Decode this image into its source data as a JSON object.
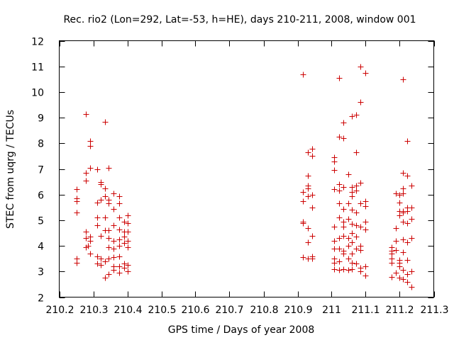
{
  "chart_data": {
    "type": "scatter",
    "title": "Rec. rio2 (Lon=292, Lat=-53, h=HE), days 210-211, 2008, window 001",
    "xlabel": "GPS time / Days of year 2008",
    "ylabel": "STEC from uqrg / TECUs",
    "xlim": [
      210.2,
      211.3
    ],
    "ylim": [
      2,
      12
    ],
    "grid": false,
    "legend": "none",
    "marker": "+",
    "color": "#cc0000",
    "x_ticks": [
      210.2,
      210.3,
      210.4,
      210.5,
      210.6,
      210.7,
      210.8,
      210.9,
      211,
      211.1,
      211.2,
      211.3
    ],
    "x_tick_labels": [
      "210.2",
      "210.3",
      "210.4",
      "210.5",
      "210.6",
      "210.7",
      "210.8",
      "210.9",
      "211",
      "211.1",
      "211.2",
      "211.3"
    ],
    "y_ticks": [
      2,
      3,
      4,
      5,
      6,
      7,
      8,
      9,
      10,
      11,
      12
    ],
    "y_tick_labels": [
      "2",
      "3",
      "4",
      "5",
      "6",
      "7",
      "8",
      "9",
      "10",
      "11",
      "12"
    ],
    "series": [
      {
        "name": "STEC",
        "points": [
          [
            210.252,
            6.2
          ],
          [
            210.252,
            5.85
          ],
          [
            210.252,
            5.75
          ],
          [
            210.252,
            5.3
          ],
          [
            210.252,
            3.5
          ],
          [
            210.252,
            3.35
          ],
          [
            210.278,
            9.15
          ],
          [
            210.278,
            6.85
          ],
          [
            210.278,
            6.55
          ],
          [
            210.278,
            4.55
          ],
          [
            210.278,
            4.3
          ],
          [
            210.278,
            3.95
          ],
          [
            210.285,
            4.0
          ],
          [
            210.29,
            8.1
          ],
          [
            210.29,
            7.9
          ],
          [
            210.29,
            7.05
          ],
          [
            210.29,
            4.35
          ],
          [
            210.29,
            4.2
          ],
          [
            210.29,
            3.7
          ],
          [
            210.312,
            7.0
          ],
          [
            210.312,
            5.7
          ],
          [
            210.312,
            5.1
          ],
          [
            210.312,
            4.8
          ],
          [
            210.312,
            3.6
          ],
          [
            210.312,
            3.3
          ],
          [
            210.322,
            6.5
          ],
          [
            210.322,
            6.4
          ],
          [
            210.322,
            5.8
          ],
          [
            210.322,
            4.4
          ],
          [
            210.322,
            3.5
          ],
          [
            210.322,
            3.25
          ],
          [
            210.335,
            8.85
          ],
          [
            210.335,
            6.25
          ],
          [
            210.335,
            5.95
          ],
          [
            210.335,
            5.1
          ],
          [
            210.335,
            4.6
          ],
          [
            210.335,
            3.4
          ],
          [
            210.335,
            2.75
          ],
          [
            210.345,
            7.05
          ],
          [
            210.345,
            5.8
          ],
          [
            210.345,
            5.65
          ],
          [
            210.345,
            4.3
          ],
          [
            210.345,
            4.6
          ],
          [
            210.345,
            3.95
          ],
          [
            210.345,
            3.5
          ],
          [
            210.345,
            2.9
          ],
          [
            210.36,
            6.05
          ],
          [
            210.36,
            5.45
          ],
          [
            210.36,
            4.8
          ],
          [
            210.36,
            4.2
          ],
          [
            210.36,
            3.9
          ],
          [
            210.36,
            3.55
          ],
          [
            210.36,
            3.2
          ],
          [
            210.36,
            3.05
          ],
          [
            210.375,
            5.95
          ],
          [
            210.375,
            5.65
          ],
          [
            210.375,
            5.1
          ],
          [
            210.375,
            4.65
          ],
          [
            210.375,
            4.25
          ],
          [
            210.375,
            4.0
          ],
          [
            210.375,
            3.6
          ],
          [
            210.375,
            3.2
          ],
          [
            210.375,
            2.95
          ],
          [
            210.39,
            4.95
          ],
          [
            210.39,
            4.55
          ],
          [
            210.39,
            4.35
          ],
          [
            210.39,
            4.1
          ],
          [
            210.39,
            3.3
          ],
          [
            210.39,
            3.15
          ],
          [
            210.4,
            5.2
          ],
          [
            210.4,
            4.9
          ],
          [
            210.4,
            4.55
          ],
          [
            210.4,
            4.2
          ],
          [
            210.4,
            3.95
          ],
          [
            210.4,
            3.25
          ],
          [
            210.4,
            3.0
          ],
          [
            210.915,
            10.7
          ],
          [
            210.915,
            6.1
          ],
          [
            210.915,
            5.75
          ],
          [
            210.915,
            4.95
          ],
          [
            210.915,
            4.9
          ],
          [
            210.915,
            3.55
          ],
          [
            210.93,
            7.65
          ],
          [
            210.93,
            6.75
          ],
          [
            210.93,
            6.35
          ],
          [
            210.93,
            6.25
          ],
          [
            210.93,
            5.95
          ],
          [
            210.93,
            4.7
          ],
          [
            210.93,
            4.15
          ],
          [
            210.93,
            3.5
          ],
          [
            210.942,
            7.8
          ],
          [
            210.942,
            7.5
          ],
          [
            210.942,
            6.0
          ],
          [
            210.942,
            5.5
          ],
          [
            210.942,
            4.4
          ],
          [
            210.942,
            3.6
          ],
          [
            210.942,
            3.5
          ],
          [
            211.008,
            7.45
          ],
          [
            211.008,
            7.3
          ],
          [
            211.008,
            6.95
          ],
          [
            211.008,
            6.2
          ],
          [
            211.008,
            4.75
          ],
          [
            211.008,
            4.2
          ],
          [
            211.008,
            3.9
          ],
          [
            211.008,
            3.5
          ],
          [
            211.008,
            3.35
          ],
          [
            211.008,
            3.1
          ],
          [
            211.022,
            10.55
          ],
          [
            211.022,
            8.25
          ],
          [
            211.022,
            6.4
          ],
          [
            211.022,
            6.15
          ],
          [
            211.022,
            5.65
          ],
          [
            211.022,
            5.1
          ],
          [
            211.022,
            4.3
          ],
          [
            211.022,
            3.9
          ],
          [
            211.022,
            3.4
          ],
          [
            211.022,
            3.05
          ],
          [
            211.035,
            8.8
          ],
          [
            211.035,
            8.2
          ],
          [
            211.035,
            6.3
          ],
          [
            211.035,
            5.45
          ],
          [
            211.035,
            4.95
          ],
          [
            211.035,
            4.75
          ],
          [
            211.035,
            4.4
          ],
          [
            211.035,
            3.8
          ],
          [
            211.035,
            3.7
          ],
          [
            211.035,
            3.1
          ],
          [
            211.048,
            6.8
          ],
          [
            211.048,
            5.65
          ],
          [
            211.048,
            5.05
          ],
          [
            211.048,
            4.3
          ],
          [
            211.048,
            4.0
          ],
          [
            211.048,
            3.5
          ],
          [
            211.048,
            3.05
          ],
          [
            211.06,
            9.05
          ],
          [
            211.06,
            6.3
          ],
          [
            211.06,
            6.1
          ],
          [
            211.06,
            5.95
          ],
          [
            211.06,
            5.4
          ],
          [
            211.06,
            4.85
          ],
          [
            211.06,
            4.5
          ],
          [
            211.06,
            4.15
          ],
          [
            211.06,
            3.7
          ],
          [
            211.06,
            3.35
          ],
          [
            211.06,
            3.1
          ],
          [
            211.072,
            9.1
          ],
          [
            211.072,
            7.65
          ],
          [
            211.072,
            6.35
          ],
          [
            211.072,
            6.15
          ],
          [
            211.072,
            5.3
          ],
          [
            211.072,
            4.8
          ],
          [
            211.072,
            4.35
          ],
          [
            211.072,
            3.9
          ],
          [
            211.072,
            3.3
          ],
          [
            211.085,
            11.0
          ],
          [
            211.085,
            9.6
          ],
          [
            211.085,
            6.45
          ],
          [
            211.085,
            5.65
          ],
          [
            211.085,
            4.75
          ],
          [
            211.085,
            4.0
          ],
          [
            211.085,
            3.85
          ],
          [
            211.085,
            3.15
          ],
          [
            211.085,
            3.0
          ],
          [
            211.1,
            10.75
          ],
          [
            211.1,
            5.75
          ],
          [
            211.1,
            5.55
          ],
          [
            211.1,
            4.95
          ],
          [
            211.1,
            4.65
          ],
          [
            211.1,
            3.2
          ],
          [
            211.1,
            2.85
          ],
          [
            211.175,
            3.95
          ],
          [
            211.175,
            3.8
          ],
          [
            211.175,
            3.7
          ],
          [
            211.175,
            3.5
          ],
          [
            211.175,
            3.35
          ],
          [
            211.175,
            2.8
          ],
          [
            211.188,
            6.05
          ],
          [
            211.188,
            4.7
          ],
          [
            211.188,
            4.2
          ],
          [
            211.188,
            3.85
          ],
          [
            211.188,
            2.95
          ],
          [
            211.198,
            6.0
          ],
          [
            211.198,
            5.7
          ],
          [
            211.198,
            5.35
          ],
          [
            211.198,
            5.2
          ],
          [
            211.198,
            3.45
          ],
          [
            211.198,
            3.35
          ],
          [
            211.198,
            3.2
          ],
          [
            211.198,
            2.75
          ],
          [
            211.21,
            10.5
          ],
          [
            211.21,
            6.85
          ],
          [
            211.21,
            6.25
          ],
          [
            211.21,
            6.05
          ],
          [
            211.21,
            5.35
          ],
          [
            211.21,
            5.3
          ],
          [
            211.21,
            4.95
          ],
          [
            211.21,
            4.25
          ],
          [
            211.21,
            3.75
          ],
          [
            211.21,
            3.05
          ],
          [
            211.21,
            2.7
          ],
          [
            211.222,
            8.1
          ],
          [
            211.222,
            6.75
          ],
          [
            211.222,
            5.5
          ],
          [
            211.222,
            5.35
          ],
          [
            211.222,
            4.9
          ],
          [
            211.222,
            4.15
          ],
          [
            211.222,
            3.45
          ],
          [
            211.222,
            2.9
          ],
          [
            211.222,
            2.6
          ],
          [
            211.235,
            6.35
          ],
          [
            211.235,
            5.5
          ],
          [
            211.235,
            5.05
          ],
          [
            211.235,
            4.3
          ],
          [
            211.235,
            3.0
          ],
          [
            211.235,
            2.4
          ]
        ]
      }
    ]
  }
}
